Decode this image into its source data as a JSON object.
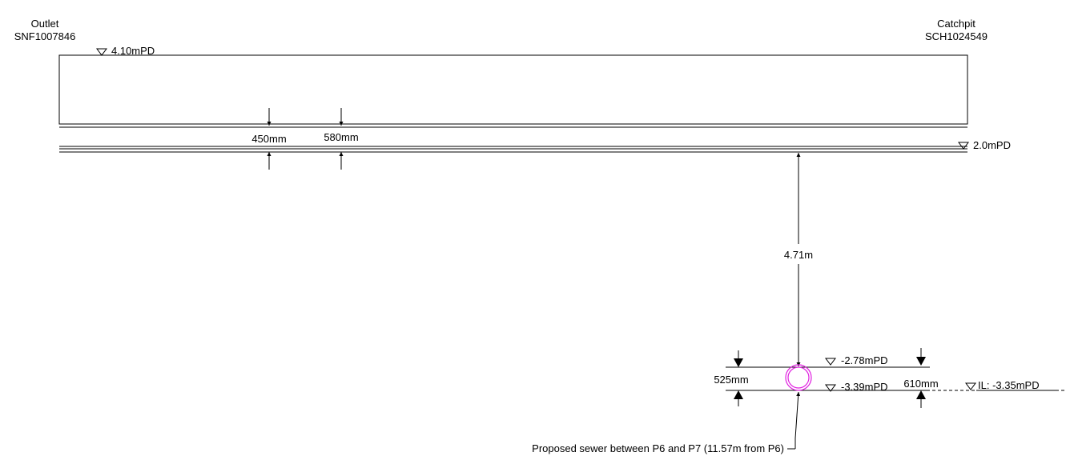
{
  "outlet": {
    "title": "Outlet",
    "id": "SNF1007846"
  },
  "catchpit": {
    "title": "Catchpit",
    "id": "SCH1024549"
  },
  "levels": {
    "outlet_ground": "4.10mPD",
    "pipe_level": "2.0mPD",
    "sewer_top": "-2.78mPD",
    "sewer_bottom": "-3.39mPD",
    "invert": "IL: -3.35mPD"
  },
  "dimensions": {
    "d450": "450mm",
    "d580": "580mm",
    "depth": "4.71m",
    "d525": "525mm",
    "d610": "610mm"
  },
  "callout": "Proposed sewer between P6 and P7 (11.57m from P6)",
  "colors": {
    "sewer_pipe": "#e020e0",
    "lines": "#000000"
  }
}
